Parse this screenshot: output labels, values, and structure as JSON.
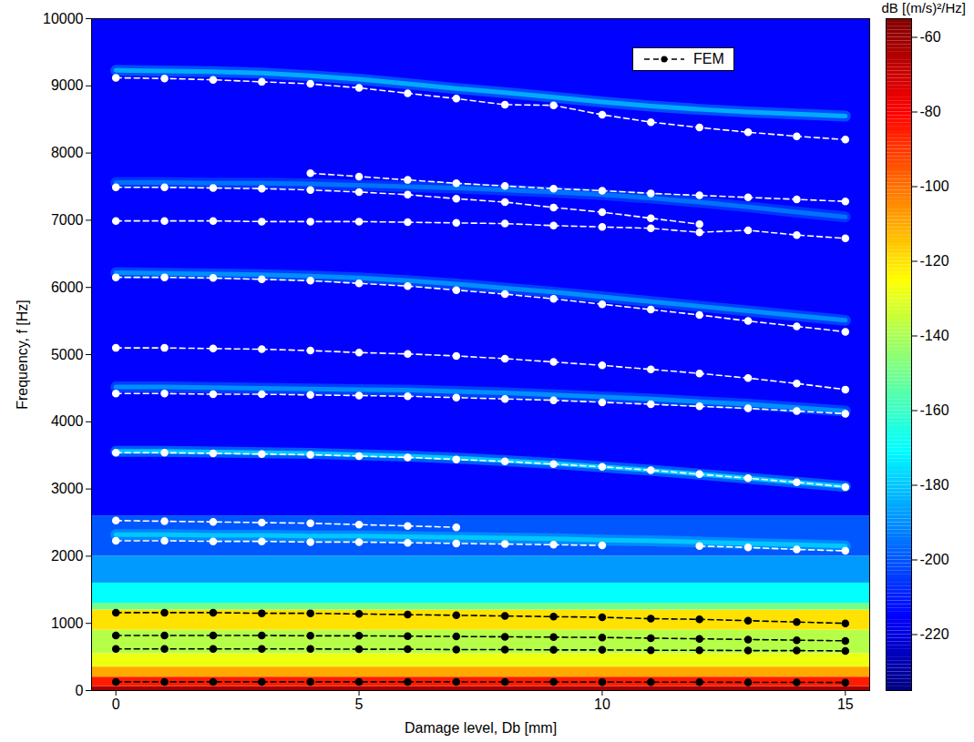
{
  "chart_data": {
    "type": "heatmap",
    "xlabel": "Damage level, Db [mm]",
    "ylabel": "Frequency, f [Hz]",
    "xlim": [
      -0.5,
      15.5
    ],
    "xticks": [
      0,
      5,
      10,
      15
    ],
    "ylim": [
      0,
      10000
    ],
    "yticks": [
      0,
      1000,
      2000,
      3000,
      4000,
      5000,
      6000,
      7000,
      8000,
      9000,
      10000
    ],
    "grid": false,
    "legend": "upper right",
    "x": [
      0,
      1,
      2,
      3,
      4,
      5,
      6,
      7,
      8,
      9,
      10,
      11,
      12,
      13,
      14,
      15
    ],
    "cells": {
      "freq_edges": [
        0,
        60,
        200,
        350,
        550,
        900,
        1200,
        1300,
        1600,
        2000,
        2600,
        10000
      ],
      "levels": [
        -62,
        -85,
        -110,
        -128,
        -138,
        -120,
        -150,
        -170,
        -188,
        -200,
        -215
      ]
    },
    "ridges": [
      {
        "level": -185,
        "freq": [
          9230,
          9220,
          9210,
          9190,
          9150,
          9100,
          9030,
          8960,
          8900,
          8830,
          8760,
          8700,
          8650,
          8610,
          8580,
          8550
        ]
      },
      {
        "level": -195,
        "freq": [
          7560,
          7560,
          7550,
          7550,
          7540,
          7520,
          7500,
          7480,
          7450,
          7420,
          7380,
          7330,
          7270,
          7200,
          7120,
          7050
        ]
      },
      {
        "level": -190,
        "freq": [
          6220,
          6210,
          6200,
          6190,
          6170,
          6140,
          6100,
          6050,
          5990,
          5930,
          5860,
          5790,
          5720,
          5650,
          5580,
          5510
        ]
      },
      {
        "level": -190,
        "freq": [
          4520,
          4520,
          4510,
          4500,
          4490,
          4480,
          4470,
          4450,
          4430,
          4400,
          4370,
          4340,
          4300,
          4260,
          4210,
          4160
        ]
      },
      {
        "level": -180,
        "freq": [
          3560,
          3560,
          3550,
          3540,
          3530,
          3510,
          3490,
          3460,
          3420,
          3380,
          3330,
          3280,
          3220,
          3160,
          3100,
          3040
        ]
      },
      {
        "level": -180,
        "freq": [
          2320,
          2320,
          2310,
          2310,
          2300,
          2300,
          2290,
          2280,
          2270,
          2260,
          2240,
          2230,
          2210,
          2190,
          2170,
          2150
        ]
      }
    ],
    "series": [
      {
        "name": "FEM",
        "color": "black",
        "marker": "circle",
        "line_style": "dashed",
        "values": [
          1160,
          1160,
          1160,
          1150,
          1150,
          1140,
          1130,
          1120,
          1110,
          1100,
          1090,
          1070,
          1060,
          1040,
          1020,
          1000
        ]
      },
      {
        "name": "FEM",
        "color": "black",
        "marker": "circle",
        "line_style": "dashed",
        "values": [
          820,
          820,
          820,
          820,
          815,
          815,
          810,
          805,
          800,
          795,
          790,
          780,
          770,
          760,
          750,
          740
        ]
      },
      {
        "name": "FEM",
        "color": "black",
        "marker": "circle",
        "line_style": "dashed",
        "values": [
          620,
          620,
          620,
          620,
          620,
          615,
          615,
          610,
          610,
          605,
          605,
          600,
          600,
          595,
          595,
          590
        ]
      },
      {
        "name": "FEM",
        "color": "black",
        "marker": "circle",
        "line_style": "dashed",
        "values": [
          130,
          130,
          130,
          130,
          130,
          130,
          130,
          130,
          128,
          128,
          127,
          125,
          125,
          123,
          122,
          120
        ]
      },
      {
        "name": "FEM",
        "color": "white",
        "marker": "circle",
        "line_style": "dashed",
        "values": [
          9120,
          9110,
          9090,
          9060,
          9030,
          8970,
          8890,
          8810,
          8720,
          8710,
          8570,
          8460,
          8380,
          8310,
          8250,
          8200
        ]
      },
      {
        "name": "FEM",
        "color": "white",
        "marker": "circle",
        "line_style": "dashed",
        "values": [
          null,
          null,
          null,
          null,
          7700,
          7650,
          7600,
          7550,
          7510,
          7470,
          7440,
          7400,
          7370,
          7340,
          7310,
          7280
        ]
      },
      {
        "name": "FEM",
        "color": "white",
        "marker": "circle",
        "line_style": "dashed",
        "values": [
          7490,
          7490,
          7480,
          7470,
          7450,
          7420,
          7380,
          7320,
          7270,
          7190,
          7120,
          7030,
          6940,
          null,
          null,
          null
        ]
      },
      {
        "name": "FEM",
        "color": "white",
        "marker": "circle",
        "line_style": "dashed",
        "values": [
          6990,
          6990,
          6990,
          6980,
          6980,
          6980,
          6970,
          6960,
          6950,
          6920,
          6900,
          6880,
          6820,
          6850,
          6780,
          6730
        ]
      },
      {
        "name": "FEM",
        "color": "white",
        "marker": "circle",
        "line_style": "dashed",
        "values": [
          6150,
          6150,
          6140,
          6120,
          6100,
          6060,
          6020,
          5960,
          5900,
          5830,
          5750,
          5670,
          5590,
          5500,
          5420,
          5340
        ]
      },
      {
        "name": "FEM",
        "color": "white",
        "marker": "circle",
        "line_style": "dashed",
        "values": [
          5100,
          5100,
          5090,
          5080,
          5060,
          5030,
          5010,
          4980,
          4940,
          4890,
          4840,
          4780,
          4720,
          4650,
          4570,
          4480
        ]
      },
      {
        "name": "FEM",
        "color": "white",
        "marker": "circle",
        "line_style": "dashed",
        "values": [
          4420,
          4420,
          4410,
          4410,
          4400,
          4390,
          4380,
          4360,
          4340,
          4320,
          4290,
          4260,
          4230,
          4200,
          4160,
          4120
        ]
      },
      {
        "name": "FEM",
        "color": "white",
        "marker": "circle",
        "line_style": "dashed",
        "values": [
          3540,
          3540,
          3530,
          3520,
          3510,
          3490,
          3470,
          3440,
          3410,
          3370,
          3330,
          3280,
          3220,
          3160,
          3100,
          3030
        ]
      },
      {
        "name": "FEM",
        "color": "white",
        "marker": "circle",
        "line_style": "dashed",
        "values": [
          2530,
          2520,
          2510,
          2500,
          2490,
          2470,
          2450,
          2430,
          null,
          null,
          null,
          null,
          null,
          null,
          null,
          null
        ]
      },
      {
        "name": "FEM",
        "color": "white",
        "marker": "circle",
        "line_style": "dashed",
        "values": [
          2230,
          2230,
          2220,
          2220,
          2210,
          2210,
          2200,
          2190,
          2180,
          2170,
          2160,
          null,
          2150,
          2130,
          2100,
          2080
        ]
      }
    ],
    "colorbar": {
      "label": "dB [(m/s)²/Hz]",
      "range": [
        -235,
        -55
      ],
      "ticks": [
        -220,
        -200,
        -180,
        -160,
        -140,
        -120,
        -100,
        -80,
        -60
      ]
    }
  }
}
